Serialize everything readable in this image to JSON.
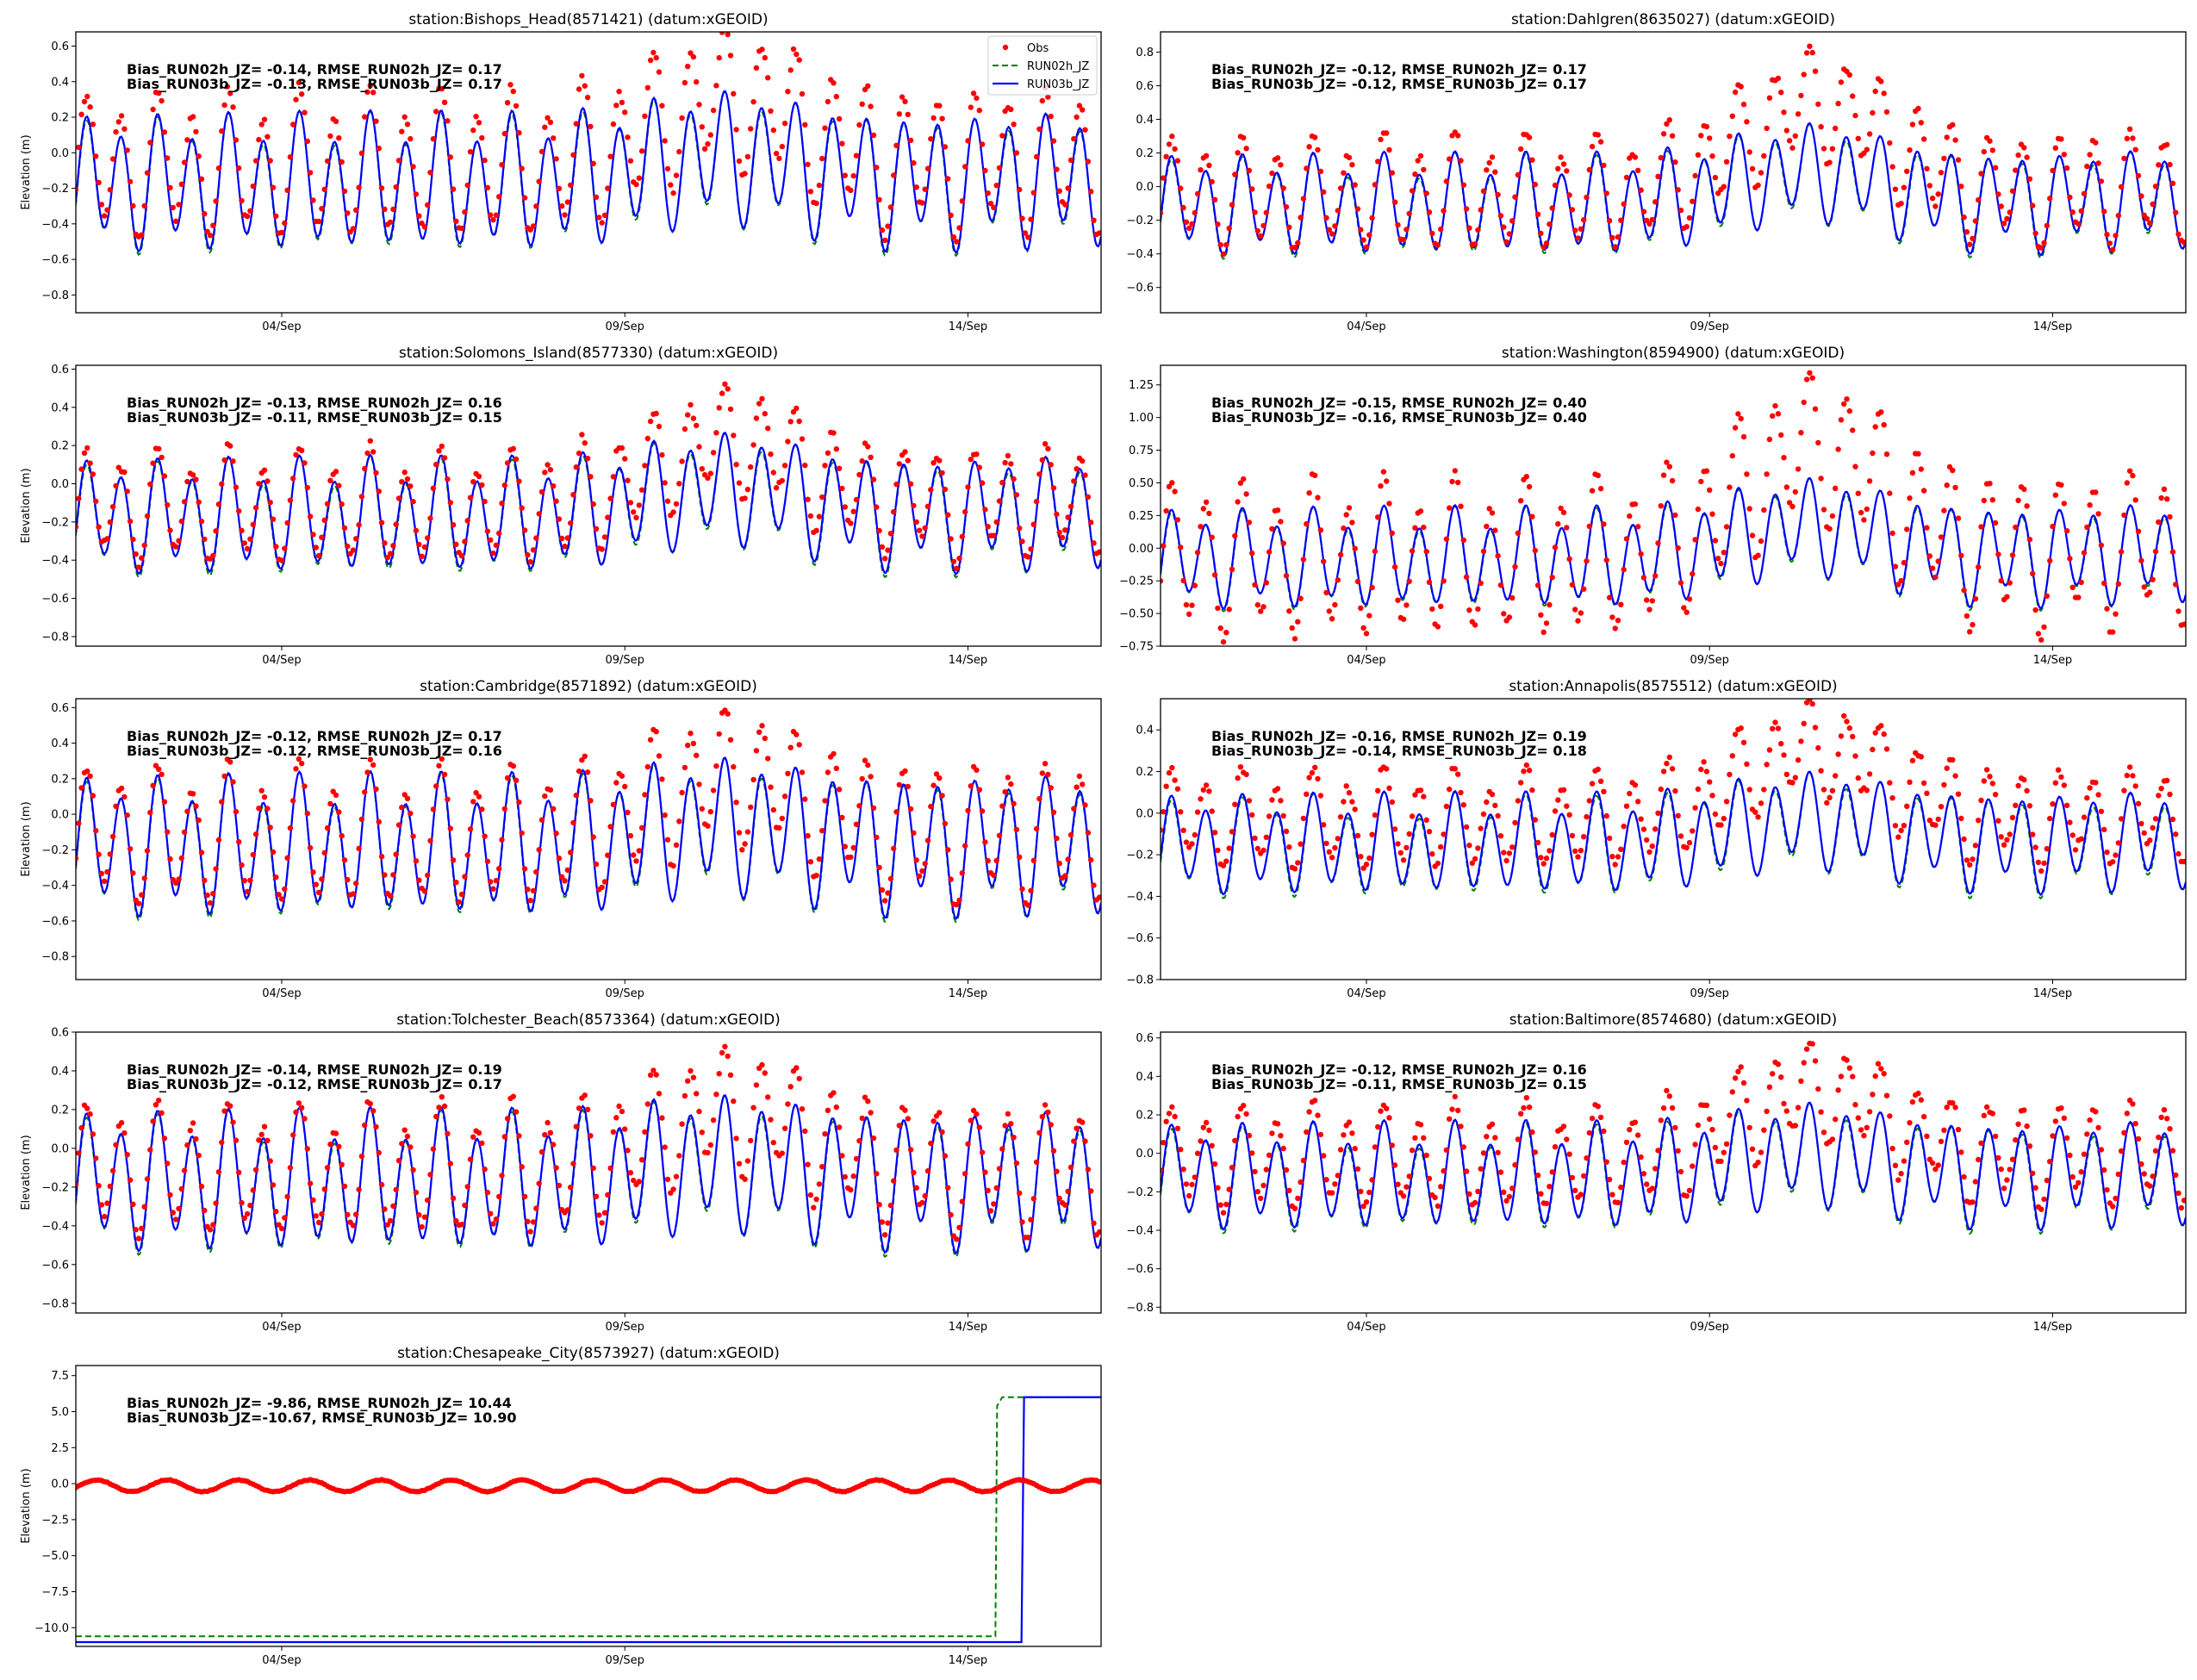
{
  "chart_data": [
    {
      "type": "line",
      "title": "station:Bishops_Head(8571421) (datum:xGEOID)",
      "ylabel": "Elevation (m)",
      "xlabel": "",
      "xticks": [
        "04/Sep",
        "09/Sep",
        "14/Sep"
      ],
      "yticks": [
        "0.6",
        "0.4",
        "0.2",
        "0.0",
        "−0.2",
        "−0.4",
        "−0.6",
        "−0.8"
      ],
      "ylim": [
        -0.9,
        0.68
      ],
      "stats": [
        "Bias_RUN02h_JZ= -0.14, RMSE_RUN02h_JZ=  0.17",
        "Bias_RUN03b_JZ= -0.13, RMSE_RUN03b_JZ=  0.17"
      ],
      "model": {
        "mean": -0.17,
        "amp": 0.32,
        "surge_amp": 0.15
      },
      "obs": {
        "offset": 0.1,
        "amp_scale": 1.1,
        "surge": 0.22
      },
      "legend": {
        "position": "upper right",
        "entries": [
          "Obs",
          "RUN02h_JZ",
          "RUN03b_JZ"
        ]
      }
    },
    {
      "type": "line",
      "title": "station:Dahlgren(8635027) (datum:xGEOID)",
      "ylabel": "",
      "xticks": [
        "04/Sep",
        "09/Sep",
        "14/Sep"
      ],
      "yticks": [
        "0.8",
        "0.6",
        "0.4",
        "0.2",
        "0.0",
        "−0.2",
        "−0.4",
        "−0.6"
      ],
      "ylim": [
        -0.75,
        0.92
      ],
      "stats": [
        "Bias_RUN02h_JZ= -0.12, RMSE_RUN02h_JZ=  0.17",
        "Bias_RUN03b_JZ= -0.12, RMSE_RUN03b_JZ=  0.17"
      ],
      "model": {
        "mean": -0.11,
        "amp": 0.25,
        "surge_amp": 0.2
      },
      "obs": {
        "offset": 0.07,
        "amp_scale": 1.15,
        "surge": 0.3
      }
    },
    {
      "type": "line",
      "title": "station:Solomons_Island(8577330) (datum:xGEOID)",
      "ylabel": "Elevation (m)",
      "xticks": [
        "04/Sep",
        "09/Sep",
        "14/Sep"
      ],
      "yticks": [
        "0.6",
        "0.4",
        "0.2",
        "0.0",
        "−0.2",
        "−0.4",
        "−0.6",
        "−0.8"
      ],
      "ylim": [
        -0.85,
        0.62
      ],
      "stats": [
        "Bias_RUN02h_JZ= -0.13, RMSE_RUN02h_JZ=  0.16",
        "Bias_RUN03b_JZ= -0.11, RMSE_RUN03b_JZ=  0.15"
      ],
      "model": {
        "mean": -0.17,
        "amp": 0.25,
        "surge_amp": 0.15
      },
      "obs": {
        "offset": 0.05,
        "amp_scale": 1.0,
        "surge": 0.2
      }
    },
    {
      "type": "line",
      "title": "station:Washington(8594900) (datum:xGEOID)",
      "ylabel": "",
      "xticks": [
        "04/Sep",
        "09/Sep",
        "14/Sep"
      ],
      "yticks": [
        "1.25",
        "1.00",
        "0.75",
        "0.50",
        "0.25",
        "0.00",
        "−0.25",
        "−0.50",
        "−0.75"
      ],
      "ylim": [
        -0.75,
        1.4
      ],
      "stats": [
        "Bias_RUN02h_JZ= -0.15, RMSE_RUN02h_JZ=  0.40",
        "Bias_RUN03b_JZ= -0.16, RMSE_RUN03b_JZ=  0.40"
      ],
      "model": {
        "mean": -0.08,
        "amp": 0.32,
        "surge_amp": 0.25
      },
      "obs": {
        "offset": 0.0,
        "amp_scale": 1.6,
        "surge": 0.45
      }
    },
    {
      "type": "line",
      "title": "station:Cambridge(8571892) (datum:xGEOID)",
      "ylabel": "Elevation (m)",
      "xticks": [
        "04/Sep",
        "09/Sep",
        "14/Sep"
      ],
      "yticks": [
        "0.6",
        "0.4",
        "0.2",
        "0.0",
        "−0.2",
        "−0.4",
        "−0.6",
        "−0.8"
      ],
      "ylim": [
        -0.93,
        0.65
      ],
      "stats": [
        "Bias_RUN02h_JZ= -0.12, RMSE_RUN02h_JZ=  0.17",
        "Bias_RUN03b_JZ= -0.12, RMSE_RUN03b_JZ=  0.16"
      ],
      "model": {
        "mean": -0.18,
        "amp": 0.33,
        "surge_amp": 0.12
      },
      "obs": {
        "offset": 0.06,
        "amp_scale": 1.0,
        "surge": 0.22
      }
    },
    {
      "type": "line",
      "title": "station:Annapolis(8575512) (datum:xGEOID)",
      "ylabel": "",
      "xticks": [
        "04/Sep",
        "09/Sep",
        "14/Sep"
      ],
      "yticks": [
        "0.4",
        "0.2",
        "0.0",
        "−0.2",
        "−0.4",
        "−0.6",
        "−0.8"
      ],
      "ylim": [
        -0.8,
        0.55
      ],
      "stats": [
        "Bias_RUN02h_JZ= -0.16, RMSE_RUN02h_JZ=  0.19",
        "Bias_RUN03b_JZ= -0.14, RMSE_RUN03b_JZ=  0.18"
      ],
      "model": {
        "mean": -0.15,
        "amp": 0.2,
        "surge_amp": 0.12
      },
      "obs": {
        "offset": 0.12,
        "amp_scale": 1.0,
        "surge": 0.22
      }
    },
    {
      "type": "line",
      "title": "station:Tolchester_Beach(8573364) (datum:xGEOID)",
      "ylabel": "Elevation (m)",
      "xticks": [
        "04/Sep",
        "09/Sep",
        "14/Sep"
      ],
      "yticks": [
        "0.6",
        "0.4",
        "0.2",
        "0.0",
        "−0.2",
        "−0.4",
        "−0.6",
        "−0.8"
      ],
      "ylim": [
        -0.85,
        0.6
      ],
      "stats": [
        "Bias_RUN02h_JZ= -0.14, RMSE_RUN02h_JZ=  0.19",
        "Bias_RUN03b_JZ= -0.12, RMSE_RUN03b_JZ=  0.17"
      ],
      "model": {
        "mean": -0.17,
        "amp": 0.3,
        "surge_amp": 0.1
      },
      "obs": {
        "offset": 0.06,
        "amp_scale": 0.95,
        "surge": 0.22
      }
    },
    {
      "type": "line",
      "title": "station:Baltimore(8574680) (datum:xGEOID)",
      "ylabel": "",
      "xticks": [
        "04/Sep",
        "09/Sep",
        "14/Sep"
      ],
      "yticks": [
        "0.6",
        "0.4",
        "0.2",
        "0.0",
        "−0.2",
        "−0.4",
        "−0.6",
        "−0.8"
      ],
      "ylim": [
        -0.83,
        0.63
      ],
      "stats": [
        "Bias_RUN02h_JZ= -0.12, RMSE_RUN02h_JZ=  0.16",
        "Bias_RUN03b_JZ= -0.11, RMSE_RUN03b_JZ=  0.15"
      ],
      "model": {
        "mean": -0.12,
        "amp": 0.23,
        "surge_amp": 0.12
      },
      "obs": {
        "offset": 0.1,
        "amp_scale": 1.0,
        "surge": 0.22
      }
    },
    {
      "type": "line",
      "title": "station:Chesapeake_City(8573927) (datum:xGEOID)",
      "ylabel": "Elevation (m)",
      "xticks": [
        "04/Sep",
        "09/Sep",
        "14/Sep"
      ],
      "yticks": [
        "7.5",
        "5.0",
        "2.5",
        "0.0",
        "−2.5",
        "−5.0",
        "−7.5",
        "−10.0"
      ],
      "ylim": [
        -11.3,
        8.2
      ],
      "stats": [
        "Bias_RUN02h_JZ= -9.86, RMSE_RUN02h_JZ= 10.44",
        "Bias_RUN03b_JZ=-10.67, RMSE_RUN03b_JZ= 10.90"
      ],
      "model_const": {
        "run02h_low": -10.6,
        "run03b_low": -11.0,
        "high": 6.0,
        "run02h_jump_day": 14.4,
        "run03b_jump_day": 14.78
      },
      "obs": {
        "offset": 0.0,
        "amp": 0.4,
        "mean": -0.15
      }
    }
  ],
  "xaxis": {
    "start_day": 1.0,
    "end_day": 15.94,
    "tick_days": [
      4,
      9,
      14
    ]
  },
  "colors": {
    "obs": "#ff0000",
    "run02h": "#008000",
    "run03b": "#0000ff",
    "axis": "#000000"
  }
}
